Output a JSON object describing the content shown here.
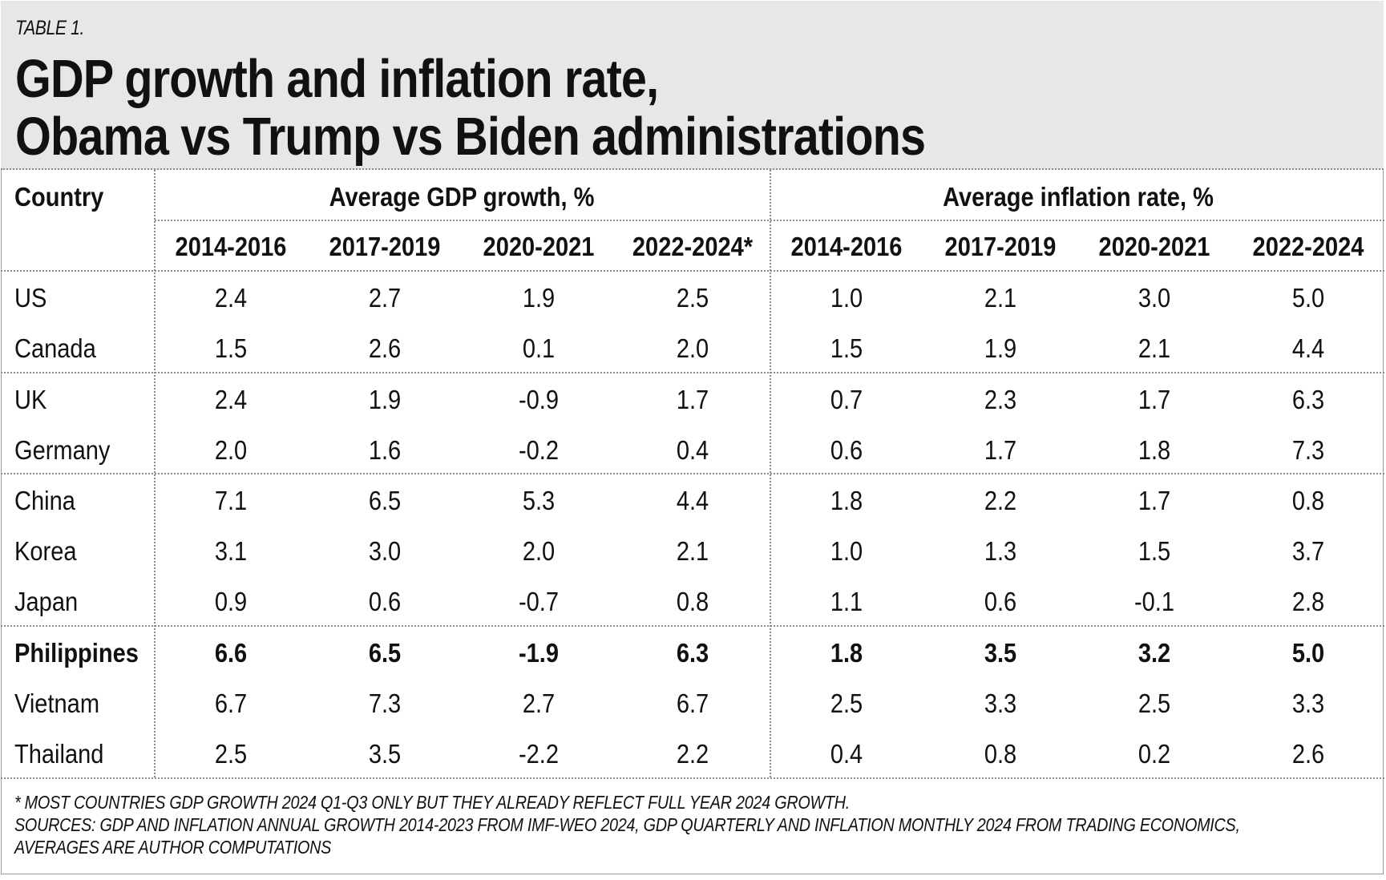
{
  "table_label": "TABLE 1.",
  "title_lines": [
    "GDP growth and inflation rate,",
    "Obama vs Trump vs Biden administrations"
  ],
  "headers": {
    "country": "Country",
    "gdp_group": "Average GDP growth, %",
    "inflation_group": "Average inflation rate, %",
    "gdp_periods": [
      "2014-2016",
      "2017-2019",
      "2020-2021",
      "2022-2024*"
    ],
    "inflation_periods": [
      "2014-2016",
      "2017-2019",
      "2020-2021",
      "2022-2024"
    ]
  },
  "rows": [
    {
      "country": "US",
      "bold": false,
      "gdp": [
        "2.4",
        "2.7",
        "1.9",
        "2.5"
      ],
      "inflation": [
        "1.0",
        "2.1",
        "3.0",
        "5.0"
      ]
    },
    {
      "country": "Canada",
      "bold": false,
      "gdp": [
        "1.5",
        "2.6",
        "0.1",
        "2.0"
      ],
      "inflation": [
        "1.5",
        "1.9",
        "2.1",
        "4.4"
      ]
    },
    {
      "country": "UK",
      "bold": false,
      "gdp": [
        "2.4",
        "1.9",
        "-0.9",
        "1.7"
      ],
      "inflation": [
        "0.7",
        "2.3",
        "1.7",
        "6.3"
      ]
    },
    {
      "country": "Germany",
      "bold": false,
      "gdp": [
        "2.0",
        "1.6",
        "-0.2",
        "0.4"
      ],
      "inflation": [
        "0.6",
        "1.7",
        "1.8",
        "7.3"
      ]
    },
    {
      "country": "China",
      "bold": false,
      "gdp": [
        "7.1",
        "6.5",
        "5.3",
        "4.4"
      ],
      "inflation": [
        "1.8",
        "2.2",
        "1.7",
        "0.8"
      ]
    },
    {
      "country": "Korea",
      "bold": false,
      "gdp": [
        "3.1",
        "3.0",
        "2.0",
        "2.1"
      ],
      "inflation": [
        "1.0",
        "1.3",
        "1.5",
        "3.7"
      ]
    },
    {
      "country": "Japan",
      "bold": false,
      "gdp": [
        "0.9",
        "0.6",
        "-0.7",
        "0.8"
      ],
      "inflation": [
        "1.1",
        "0.6",
        "-0.1",
        "2.8"
      ]
    },
    {
      "country": "Philippines",
      "bold": true,
      "gdp": [
        "6.6",
        "6.5",
        "-1.9",
        "6.3"
      ],
      "inflation": [
        "1.8",
        "3.5",
        "3.2",
        "5.0"
      ]
    },
    {
      "country": "Vietnam",
      "bold": false,
      "gdp": [
        "6.7",
        "7.3",
        "2.7",
        "6.7"
      ],
      "inflation": [
        "2.5",
        "3.3",
        "2.5",
        "3.3"
      ]
    },
    {
      "country": "Thailand",
      "bold": false,
      "gdp": [
        "2.5",
        "3.5",
        "-2.2",
        "2.2"
      ],
      "inflation": [
        "0.4",
        "0.8",
        "0.2",
        "2.6"
      ]
    }
  ],
  "footnotes": [
    "* MOST COUNTRIES GDP GROWTH 2024 Q1-Q3 ONLY BUT THEY ALREADY REFLECT FULL YEAR 2024 GROWTH.",
    "SOURCES: GDP AND INFLATION ANNUAL GROWTH 2014-2023 FROM IMF-WEO 2024, GDP QUARTERLY AND INFLATION MONTHLY 2024 FROM TRADING ECONOMICS,",
    "AVERAGES ARE AUTHOR COMPUTATIONS"
  ],
  "colors": {
    "header_bg": "#e6e7e8",
    "text": "#111111",
    "rule": "#8a8a8a"
  }
}
